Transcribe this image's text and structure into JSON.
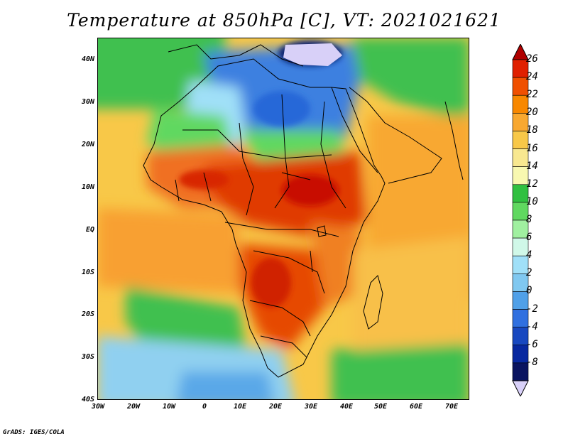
{
  "title": "Temperature at 850hPa [C], VT: 2021021621",
  "credit": "GrADS: IGES/COLA",
  "map": {
    "lat_labels": [
      "40N",
      "30N",
      "20N",
      "10N",
      "EQ",
      "10S",
      "20S",
      "30S",
      "40S"
    ],
    "lon_labels": [
      "30W",
      "20W",
      "10W",
      "0",
      "10E",
      "20E",
      "30E",
      "40E",
      "50E",
      "60E",
      "70E"
    ],
    "lat_range": [
      -40,
      45
    ],
    "lon_range": [
      -30,
      75
    ]
  },
  "colorbar": {
    "labels": [
      "26",
      "24",
      "22",
      "20",
      "18",
      "16",
      "14",
      "12",
      "10",
      "8",
      "6",
      "4",
      "2",
      "0",
      "-2",
      "-4",
      "-6",
      "-8"
    ],
    "colors": [
      "#b00000",
      "#e02000",
      "#f05000",
      "#f88800",
      "#f8a830",
      "#f8c848",
      "#f8e890",
      "#f8f8b0",
      "#30c040",
      "#60d860",
      "#a0f0a0",
      "#d0f8e8",
      "#a0e0f8",
      "#80c8f0",
      "#50a0e8",
      "#3070e0",
      "#1848c0",
      "#0828a0",
      "#0a1460",
      "#d8d0f8"
    ]
  }
}
